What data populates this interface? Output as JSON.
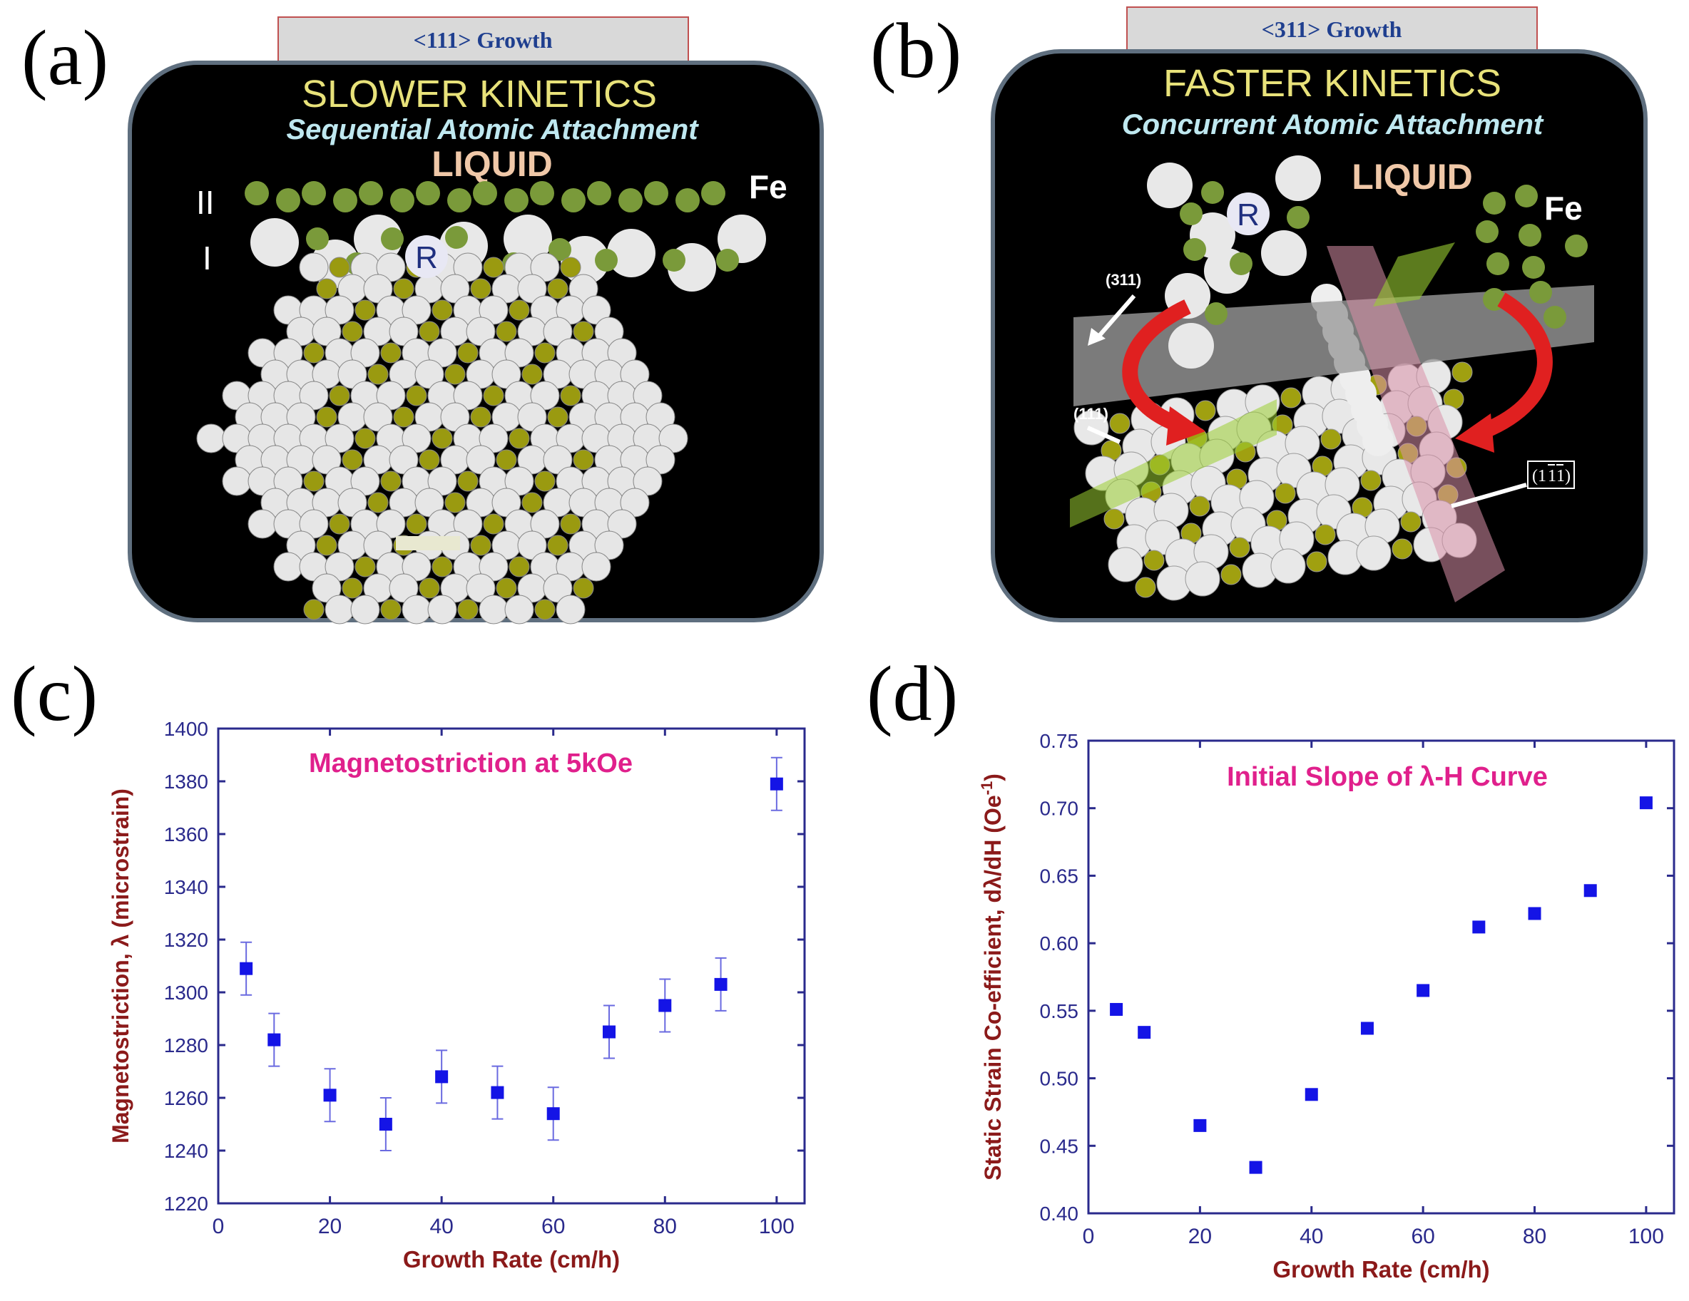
{
  "panels": {
    "a": {
      "letter": "(a)",
      "tab": "<111> Growth",
      "title": "SLOWER KINETICS",
      "subtitle": "Sequential Atomic Attachment",
      "phase": "LIQUID",
      "element": "Fe",
      "atom_label": "R",
      "layer_2": "II",
      "layer_1": "I"
    },
    "b": {
      "letter": "(b)",
      "tab": "<311> Growth",
      "title": "FASTER KINETICS",
      "subtitle": "Concurrent Atomic Attachment",
      "phase": "LIQUID",
      "element": "Fe",
      "atom_label": "R",
      "plane_311": "(311)",
      "plane_111": "(111)",
      "plane_1bar1bar1": "(1",
      "plane_1bar1bar1_bar1": "1",
      "plane_1bar1bar1_bar2": "1",
      "plane_close": ")"
    },
    "c": {
      "letter": "(c)"
    },
    "d": {
      "letter": "(d)"
    }
  },
  "colors": {
    "series_marker": "#1414e6",
    "axis": "#2a2a8c",
    "axis_label": "#8b1a1a",
    "annotation": "#e0208c",
    "fe_atom": "#7a9a3a",
    "r_atom": "#e8e8e8",
    "panel_bg": "#000000",
    "tab_bg": "#d9d9d9",
    "tab_text": "#1f3f8f",
    "title_yellow": "#e8e27a",
    "subtitle_cyan": "#bfe8f0",
    "liquid": "#f0c8a8"
  },
  "chart_data": [
    {
      "type": "scatter",
      "panel": "c",
      "title": "Magnetostriction at 5kOe",
      "xlabel": "Growth Rate (cm/h)",
      "ylabel": "Magnetostriction, λ (microstrain)",
      "xlim": [
        0,
        105
      ],
      "ylim": [
        1220,
        1400
      ],
      "xticks": [
        0,
        20,
        40,
        60,
        80,
        100
      ],
      "yticks": [
        1220,
        1240,
        1260,
        1280,
        1300,
        1320,
        1340,
        1360,
        1380,
        1400
      ],
      "error_bar": 10,
      "x": [
        5,
        10,
        20,
        30,
        40,
        50,
        60,
        70,
        80,
        90,
        100
      ],
      "y": [
        1309,
        1282,
        1261,
        1250,
        1268,
        1262,
        1254,
        1285,
        1295,
        1303,
        1379
      ]
    },
    {
      "type": "scatter",
      "panel": "d",
      "title": "Initial Slope of λ-H Curve",
      "xlabel": "Growth Rate (cm/h)",
      "ylabel_main": "Static Strain Co-efficient, dλ/dH (Oe",
      "ylabel_sup": "-1",
      "ylabel_close": ")",
      "xlim": [
        0,
        105
      ],
      "ylim": [
        0.4,
        0.75
      ],
      "xticks": [
        0,
        20,
        40,
        60,
        80,
        100
      ],
      "yticks": [
        "0.40",
        "0.45",
        "0.50",
        "0.55",
        "0.60",
        "0.65",
        "0.70",
        "0.75"
      ],
      "x": [
        5,
        10,
        20,
        30,
        40,
        50,
        60,
        70,
        80,
        90,
        100
      ],
      "y": [
        0.551,
        0.534,
        0.465,
        0.434,
        0.488,
        0.537,
        0.565,
        0.612,
        0.622,
        0.639,
        0.704
      ]
    }
  ]
}
